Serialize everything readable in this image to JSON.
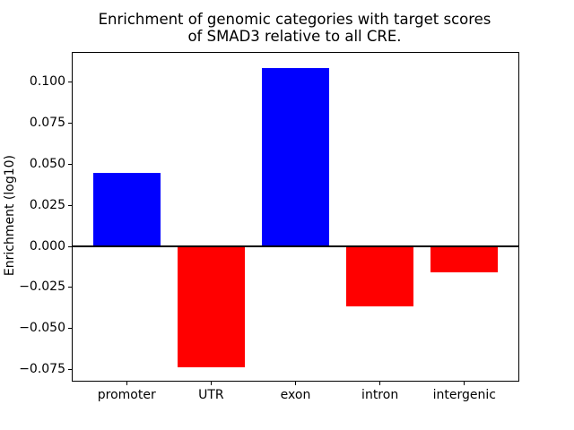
{
  "figure": {
    "background": "#ffffff",
    "title_line1": "Enrichment of genomic categories with target scores",
    "title_line2": "of SMAD3 relative to all CRE."
  },
  "chart_data": {
    "type": "bar",
    "title": "Enrichment of genomic categories with target scores\nof SMAD3 relative to all CRE.",
    "categories": [
      "promoter",
      "UTR",
      "exon",
      "intron",
      "intergenic"
    ],
    "values": [
      0.0447,
      -0.0739,
      0.1085,
      -0.0368,
      -0.0158
    ],
    "xlabel": "",
    "ylabel": "Enrichment (log10)",
    "ylim": [
      -0.082,
      0.1175
    ],
    "xlim": [
      -0.64,
      4.64
    ],
    "bar_width": 0.8,
    "positive_color": "#0000ff",
    "negative_color": "#ff0000",
    "zero_line": true,
    "zero_line_color": "#000000",
    "yticks": [
      0.1,
      0.075,
      0.05,
      0.025,
      0.0,
      -0.025,
      -0.05,
      -0.075
    ],
    "ytick_labels": [
      "0.100",
      "0.075",
      "0.050",
      "0.025",
      "0.000",
      "−0.025",
      "−0.050",
      "−0.075"
    ],
    "grid": false,
    "legend": null
  }
}
